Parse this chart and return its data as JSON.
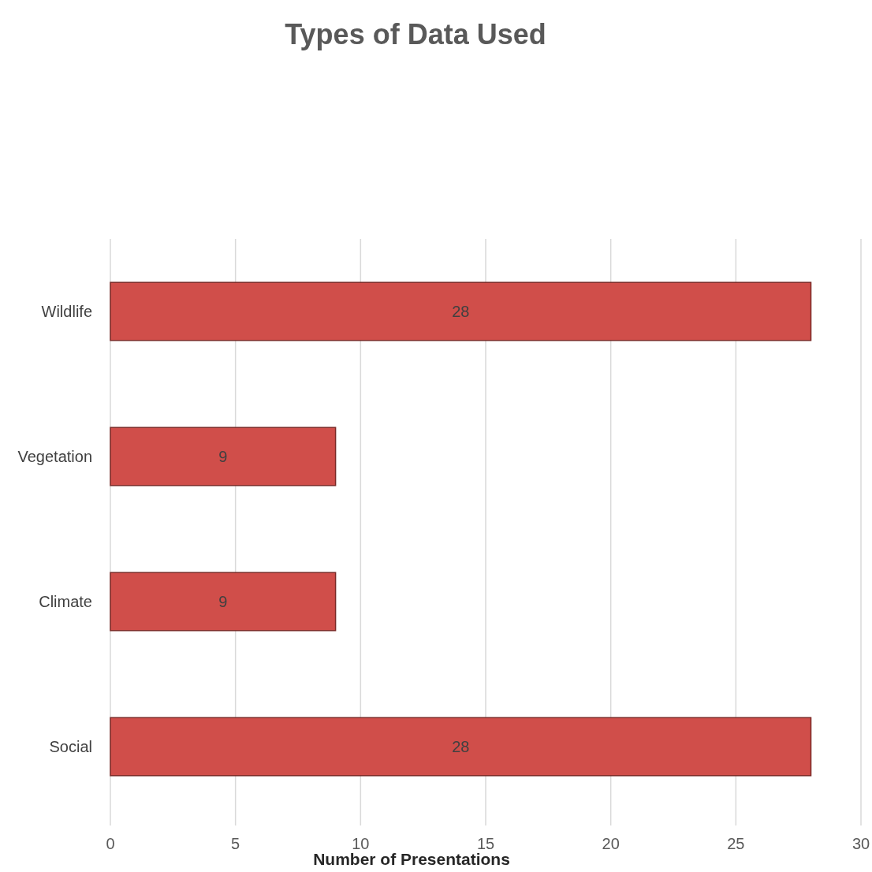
{
  "chart_data": {
    "type": "bar",
    "orientation": "horizontal",
    "title": "Types of Data Used",
    "xlabel": "Number of Presentations",
    "categories": [
      "Wildlife",
      "Vegetation",
      "Climate",
      "Social"
    ],
    "values": [
      28,
      9,
      9,
      28
    ],
    "color": "#d04e4a",
    "xlim": [
      0,
      30
    ],
    "xticks": [
      0,
      5,
      10,
      15,
      20,
      25,
      30
    ],
    "grid": "x",
    "data_labels": true
  }
}
